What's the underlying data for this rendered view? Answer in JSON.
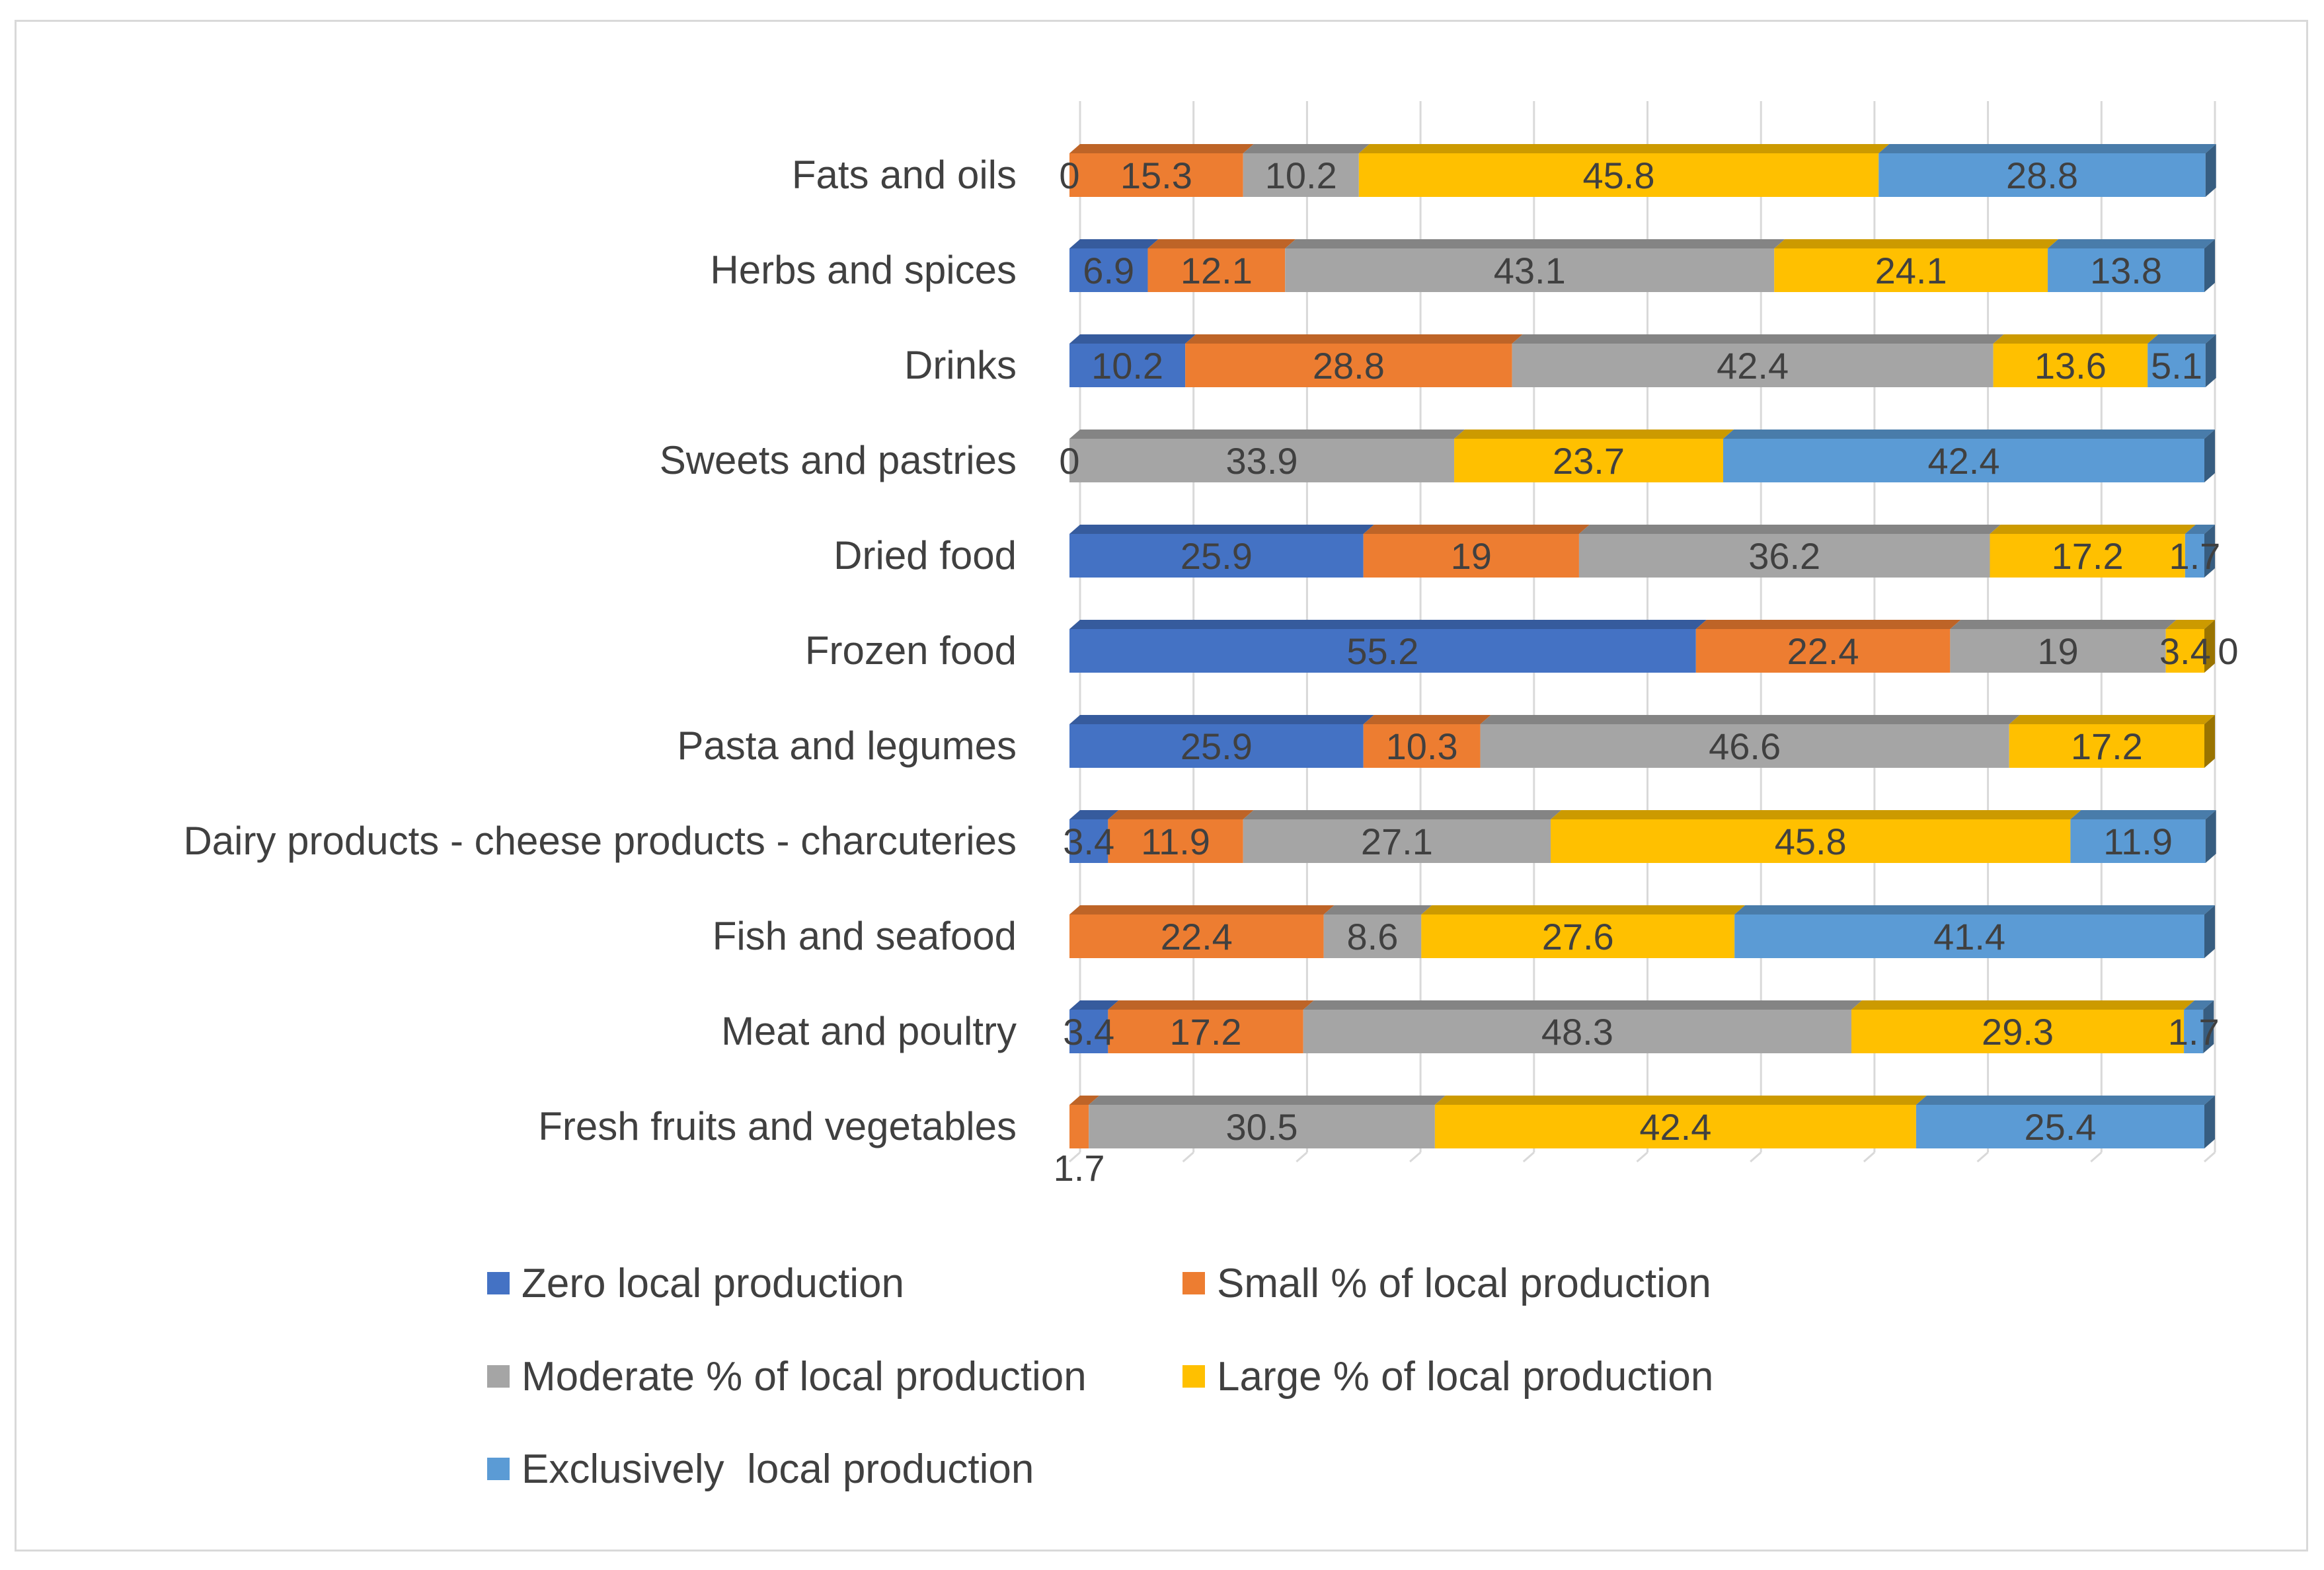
{
  "chart_data": {
    "type": "bar",
    "orientation": "horizontal",
    "stacked": true,
    "percent_stacked": true,
    "style": "3d",
    "title": "",
    "xlabel": "",
    "ylabel": "",
    "xlim": [
      0,
      100
    ],
    "grid": true,
    "legend_position": "bottom",
    "categories": [
      "Fats and oils",
      "Herbs and spices",
      "Drinks",
      "Sweets and pastries",
      "Dried food",
      "Frozen food",
      "Pasta and legumes",
      "Dairy products - cheese products - charcuteries",
      "Fish and seafood",
      "Meat and poultry",
      "Fresh fruits and vegetables"
    ],
    "series": [
      {
        "name": "Zero local production",
        "color": "#4472c4",
        "values": [
          0,
          6.9,
          10.2,
          0,
          25.9,
          55.2,
          25.9,
          3.4,
          null,
          3.4,
          null
        ]
      },
      {
        "name": "Small % of local production",
        "color": "#ed7d31",
        "values": [
          15.3,
          12.1,
          28.8,
          null,
          19,
          22.4,
          10.3,
          11.9,
          22.4,
          17.2,
          1.7
        ]
      },
      {
        "name": "Moderate % of local production",
        "color": "#a5a5a5",
        "values": [
          10.2,
          43.1,
          42.4,
          33.9,
          36.2,
          19,
          46.6,
          27.1,
          8.6,
          48.3,
          30.5
        ]
      },
      {
        "name": "Large % of local production",
        "color": "#ffc000",
        "values": [
          45.8,
          24.1,
          13.6,
          23.7,
          17.2,
          3.4,
          17.2,
          45.8,
          27.6,
          29.3,
          42.4
        ]
      },
      {
        "name": "Exclusively  local production",
        "color": "#5b9bd5",
        "values": [
          28.8,
          13.8,
          5.1,
          42.4,
          1.7,
          0,
          null,
          11.9,
          41.4,
          1.7,
          25.4
        ]
      }
    ]
  }
}
